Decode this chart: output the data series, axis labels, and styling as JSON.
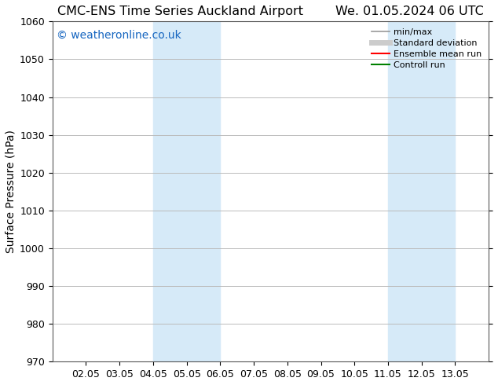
{
  "title_left": "CMC-ENS Time Series Auckland Airport",
  "title_right": "We. 01.05.2024 06 UTC",
  "ylabel": "Surface Pressure (hPa)",
  "ylim": [
    970,
    1060
  ],
  "yticks": [
    970,
    980,
    990,
    1000,
    1010,
    1020,
    1030,
    1040,
    1050,
    1060
  ],
  "xlim_start_day": 1,
  "xlim_end_day": 14,
  "xtick_days": [
    2,
    3,
    4,
    5,
    6,
    7,
    8,
    9,
    10,
    11,
    12,
    13
  ],
  "xtick_labels": [
    "02.05",
    "03.05",
    "04.05",
    "05.05",
    "06.05",
    "07.05",
    "08.05",
    "09.05",
    "10.05",
    "11.05",
    "12.05",
    "13.05"
  ],
  "shaded_regions": [
    {
      "x_start_day": 4,
      "x_end_day": 6,
      "color": "#d6eaf8"
    },
    {
      "x_start_day": 11,
      "x_end_day": 13,
      "color": "#d6eaf8"
    }
  ],
  "watermark_text": "© weatheronline.co.uk",
  "watermark_color": "#1565c0",
  "legend_entries": [
    {
      "label": "min/max",
      "color": "#999999",
      "lw": 1.2,
      "style": "solid"
    },
    {
      "label": "Standard deviation",
      "color": "#cccccc",
      "lw": 5,
      "style": "solid"
    },
    {
      "label": "Ensemble mean run",
      "color": "red",
      "lw": 1.5,
      "style": "solid"
    },
    {
      "label": "Controll run",
      "color": "green",
      "lw": 1.5,
      "style": "solid"
    }
  ],
  "bg_color": "#ffffff",
  "grid_color": "#bbbbbb",
  "title_fontsize": 11.5,
  "tick_fontsize": 9,
  "ylabel_fontsize": 10,
  "watermark_fontsize": 10,
  "legend_fontsize": 8
}
